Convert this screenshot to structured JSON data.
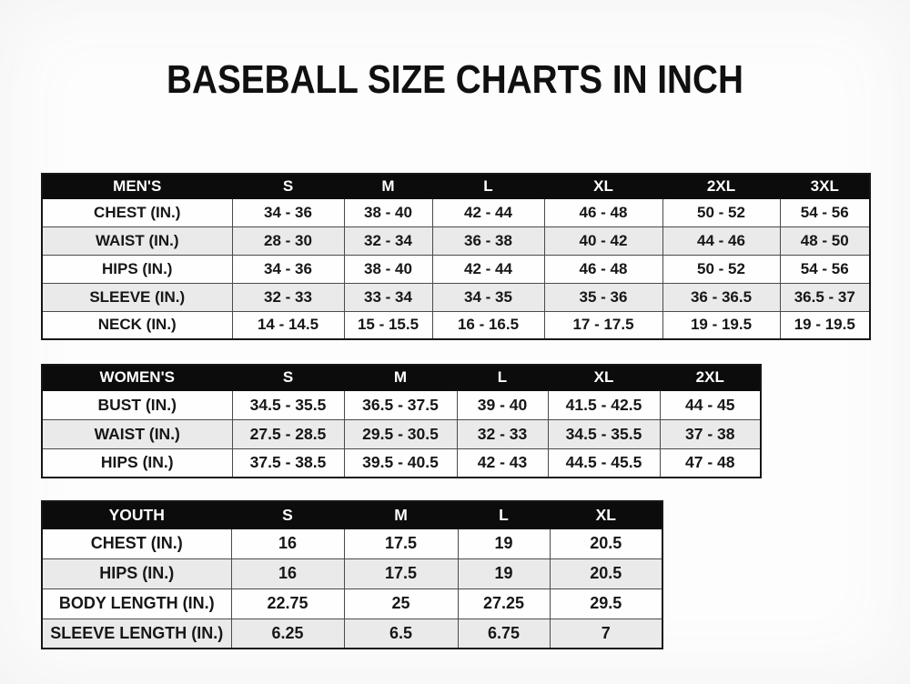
{
  "title": "BASEBALL SIZE CHARTS IN INCH",
  "colors": {
    "header_bg": "#0c0c0c",
    "header_text": "#ffffff",
    "row_alt_bg": "#ebeaea",
    "border_inner": "#4a4a4a",
    "border_outer": "#161616"
  },
  "tables": [
    {
      "id": "mens",
      "section_label": "MEN'S",
      "header": [
        "MEN'S",
        "S",
        "M",
        "L",
        "XL",
        "2XL",
        "3XL"
      ],
      "rows": [
        [
          "CHEST (IN.)",
          "34 - 36",
          "38 - 40",
          "42 - 44",
          "46 - 48",
          "50 - 52",
          "54 - 56"
        ],
        [
          "WAIST (IN.)",
          "28 - 30",
          "32 - 34",
          "36 - 38",
          "40 - 42",
          "44 - 46",
          "48 - 50"
        ],
        [
          "HIPS (IN.)",
          "34 - 36",
          "38 - 40",
          "42 - 44",
          "46 - 48",
          "50 - 52",
          "54 - 56"
        ],
        [
          "SLEEVE (IN.)",
          "32 - 33",
          "33 - 34",
          "34 - 35",
          "35 - 36",
          "36 - 36.5",
          "36.5 - 37"
        ],
        [
          "NECK (IN.)",
          "14 - 14.5",
          "15 - 15.5",
          "16 - 16.5",
          "17 - 17.5",
          "19 - 19.5",
          "19 - 19.5"
        ]
      ]
    },
    {
      "id": "womens",
      "section_label": "WOMEN'S",
      "header": [
        "WOMEN'S",
        "S",
        "M",
        "L",
        "XL",
        "2XL"
      ],
      "rows": [
        [
          "BUST (IN.)",
          "34.5 - 35.5",
          "36.5 - 37.5",
          "39 - 40",
          "41.5 - 42.5",
          "44 - 45"
        ],
        [
          "WAIST (IN.)",
          "27.5 - 28.5",
          "29.5 - 30.5",
          "32 - 33",
          "34.5 - 35.5",
          "37 - 38"
        ],
        [
          "HIPS (IN.)",
          "37.5 - 38.5",
          "39.5 - 40.5",
          "42 - 43",
          "44.5 - 45.5",
          "47 - 48"
        ]
      ]
    },
    {
      "id": "youth",
      "section_label": "YOUTH",
      "header": [
        "YOUTH",
        "S",
        "M",
        "L",
        "XL"
      ],
      "rows": [
        [
          "CHEST (IN.)",
          "16",
          "17.5",
          "19",
          "20.5"
        ],
        [
          "HIPS (IN.)",
          "16",
          "17.5",
          "19",
          "20.5"
        ],
        [
          "BODY LENGTH (IN.)",
          "22.75",
          "25",
          "27.25",
          "29.5"
        ],
        [
          "SLEEVE LENGTH (IN.)",
          "6.25",
          "6.5",
          "6.75",
          "7"
        ]
      ]
    }
  ]
}
